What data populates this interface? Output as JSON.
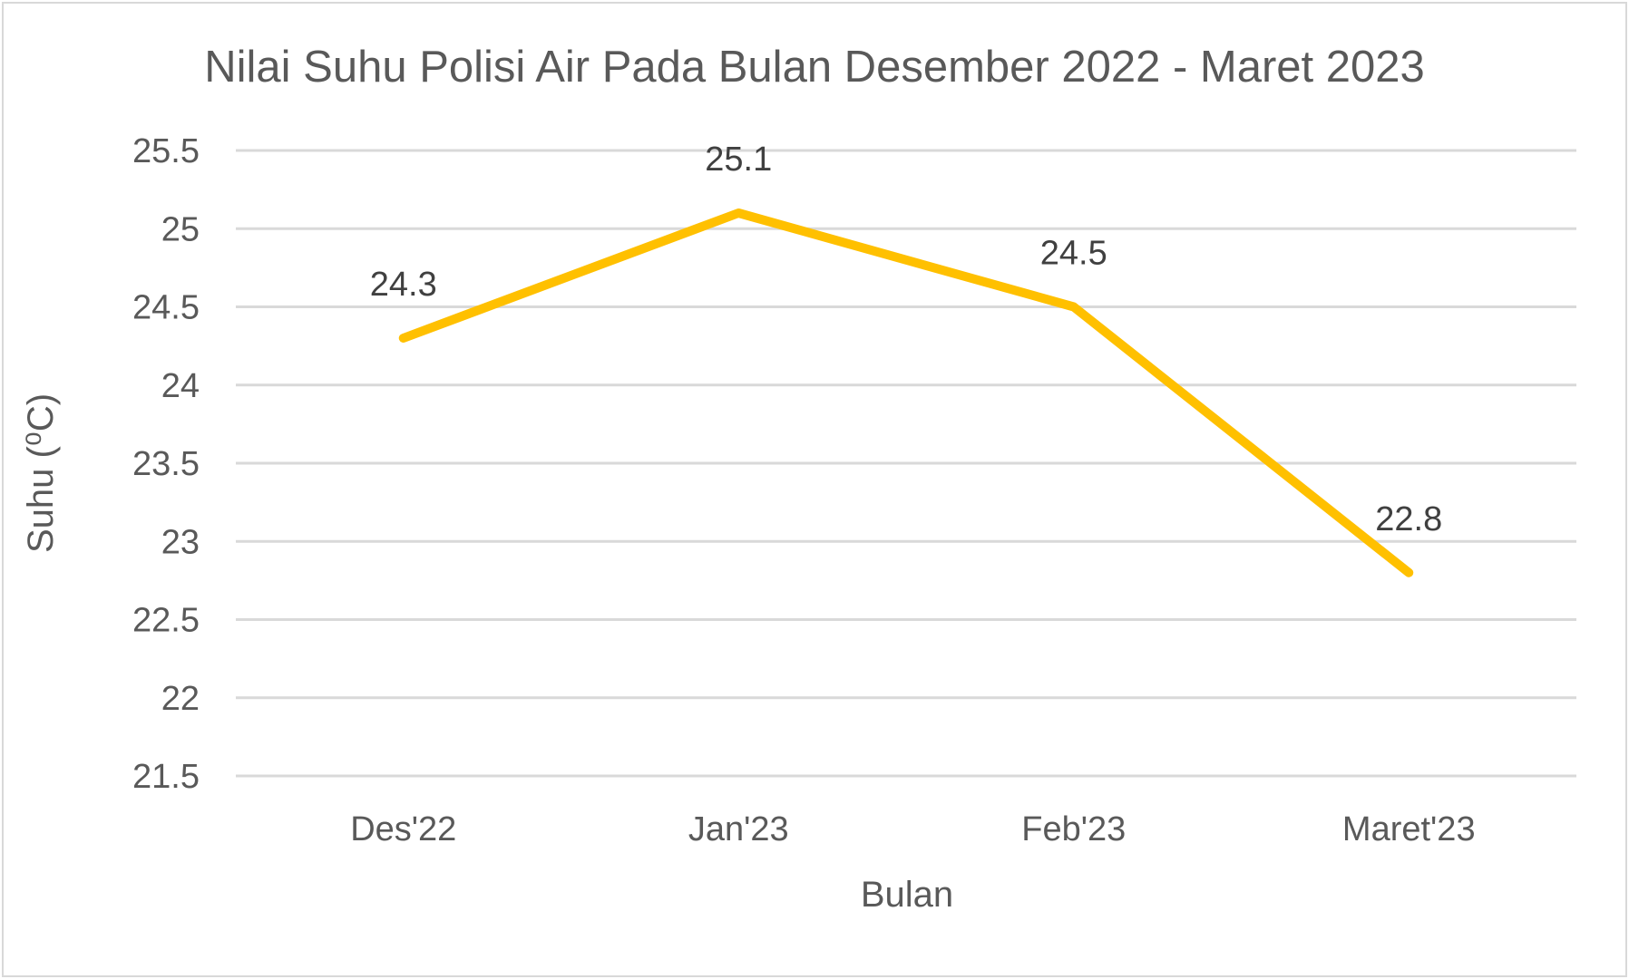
{
  "chart_data": {
    "type": "line",
    "title": "Nilai Suhu Polisi Air Pada Bulan Desember 2022 - Maret 2023",
    "xlabel": "Bulan",
    "ylabel": "Suhu (⁰C)",
    "categories": [
      "Des'22",
      "Jan'23",
      "Feb'23",
      "Maret'23"
    ],
    "series": [
      {
        "values": [
          24.3,
          25.1,
          24.5,
          22.8
        ],
        "color": "#FFC000"
      }
    ],
    "data_labels": [
      "24.3",
      "25.1",
      "24.5",
      "22.8"
    ],
    "ylim": [
      21.5,
      25.5
    ],
    "y_ticks": [
      "21.5",
      "22",
      "22.5",
      "23",
      "23.5",
      "24",
      "24.5",
      "25",
      "25.5"
    ],
    "grid": true,
    "legend": "none"
  }
}
